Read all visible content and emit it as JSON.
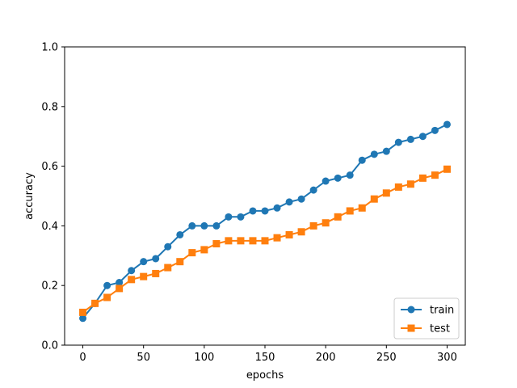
{
  "chart_data": {
    "type": "line",
    "xlabel": "epochs",
    "ylabel": "accuracy",
    "xlim": [
      -15,
      315
    ],
    "ylim": [
      0.0,
      1.0
    ],
    "xticks": [
      0,
      50,
      100,
      150,
      200,
      250,
      300
    ],
    "xtick_labels": [
      "0",
      "50",
      "100",
      "150",
      "200",
      "250",
      "300"
    ],
    "yticks": [
      0.0,
      0.2,
      0.4,
      0.6,
      0.8,
      1.0
    ],
    "ytick_labels": [
      "0.0",
      "0.2",
      "0.4",
      "0.6",
      "0.8",
      "1.0"
    ],
    "grid": false,
    "legend_position": "lower-right",
    "x": [
      0,
      10,
      20,
      30,
      40,
      50,
      60,
      70,
      80,
      90,
      100,
      110,
      120,
      130,
      140,
      150,
      160,
      170,
      180,
      190,
      200,
      210,
      220,
      230,
      240,
      250,
      260,
      270,
      280,
      290,
      300
    ],
    "series": [
      {
        "name": "train",
        "color": "#1f77b4",
        "marker": "circle",
        "values": [
          0.09,
          0.14,
          0.2,
          0.21,
          0.25,
          0.28,
          0.29,
          0.33,
          0.37,
          0.4,
          0.4,
          0.4,
          0.43,
          0.43,
          0.45,
          0.45,
          0.46,
          0.48,
          0.49,
          0.52,
          0.55,
          0.56,
          0.57,
          0.62,
          0.64,
          0.65,
          0.68,
          0.69,
          0.7,
          0.72,
          0.74
        ]
      },
      {
        "name": "test",
        "color": "#ff7f0e",
        "marker": "square",
        "values": [
          0.11,
          0.14,
          0.16,
          0.19,
          0.22,
          0.23,
          0.24,
          0.26,
          0.28,
          0.31,
          0.32,
          0.34,
          0.35,
          0.35,
          0.35,
          0.35,
          0.36,
          0.37,
          0.38,
          0.4,
          0.41,
          0.43,
          0.45,
          0.46,
          0.49,
          0.51,
          0.53,
          0.54,
          0.56,
          0.57,
          0.59
        ]
      }
    ]
  }
}
